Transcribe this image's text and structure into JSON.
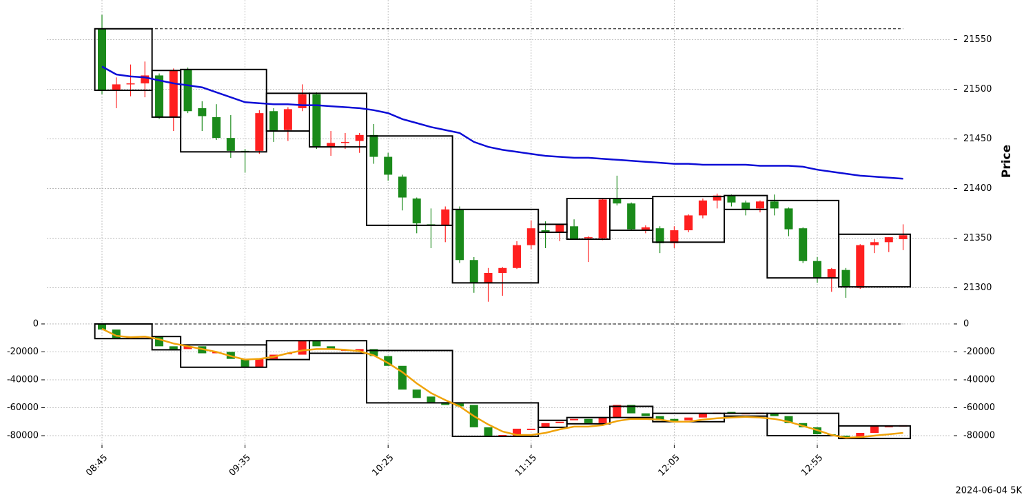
{
  "chart_data": [
    {
      "type": "candlestick",
      "y_label": "Price",
      "y_axis": "right",
      "grid": true,
      "ylim": [
        21274,
        21590
      ],
      "yticks": [
        21300,
        21350,
        21400,
        21450,
        21500,
        21550
      ],
      "up_color": "#ff1f1f",
      "down_color": "#1a8a1a",
      "box_color": "#000000",
      "reference_line": 21561,
      "open": [
        21561,
        21499,
        21505,
        21506,
        21514,
        21472,
        21520,
        21481,
        21472,
        21451,
        21438,
        21438,
        21478,
        21459,
        21481,
        21495,
        21442,
        21446,
        21448,
        21454,
        21432,
        21412,
        21390,
        21364,
        21363,
        21379,
        21328,
        21305,
        21315,
        21320,
        21343,
        21358,
        21356,
        21362,
        21350,
        21350,
        21390,
        21385,
        21358,
        21360,
        21345,
        21358,
        21373,
        21388,
        21393,
        21386,
        21380,
        21387,
        21380,
        21360,
        21327,
        21310,
        21318,
        21300,
        21343,
        21346,
        21349
      ],
      "high": [
        21575,
        21512,
        21525,
        21528,
        21516,
        21521,
        21522,
        21488,
        21485,
        21474,
        21440,
        21479,
        21481,
        21482,
        21505,
        21497,
        21458,
        21456,
        21456,
        21465,
        21436,
        21414,
        21391,
        21380,
        21382,
        21382,
        21331,
        21320,
        21321,
        21347,
        21368,
        21367,
        21364,
        21369,
        21352,
        21390,
        21413,
        21386,
        21363,
        21362,
        21362,
        21374,
        21390,
        21395,
        21394,
        21388,
        21388,
        21394,
        21381,
        21361,
        21331,
        21320,
        21320,
        21344,
        21349,
        21351,
        21364
      ],
      "low": [
        21495,
        21481,
        21493,
        21492,
        21470,
        21458,
        21476,
        21458,
        21449,
        21431,
        21416,
        21435,
        21447,
        21448,
        21478,
        21440,
        21433,
        21440,
        21436,
        21425,
        21408,
        21378,
        21355,
        21340,
        21346,
        21325,
        21295,
        21286,
        21292,
        21319,
        21339,
        21340,
        21347,
        21349,
        21326,
        21348,
        21383,
        21358,
        21355,
        21335,
        21340,
        21356,
        21370,
        21380,
        21382,
        21373,
        21376,
        21373,
        21352,
        21325,
        21305,
        21296,
        21290,
        21299,
        21335,
        21336,
        21338
      ],
      "close": [
        21499,
        21505,
        21506,
        21514,
        21472,
        21519,
        21478,
        21473,
        21451,
        21438,
        21437,
        21476,
        21458,
        21480,
        21495,
        21442,
        21446,
        21447,
        21454,
        21432,
        21414,
        21391,
        21365,
        21363,
        21379,
        21328,
        21305,
        21315,
        21320,
        21343,
        21360,
        21356,
        21364,
        21349,
        21351,
        21389,
        21385,
        21359,
        21361,
        21345,
        21358,
        21373,
        21388,
        21393,
        21386,
        21379,
        21387,
        21380,
        21359,
        21327,
        21310,
        21319,
        21301,
        21343,
        21346,
        21351,
        21353
      ],
      "boxes": [
        {
          "first": 0,
          "last": 3,
          "high": 21561,
          "low": 21499
        },
        {
          "first": 4,
          "last": 5,
          "high": 21519,
          "low": 21472
        },
        {
          "first": 6,
          "last": 11,
          "high": 21520,
          "low": 21437
        },
        {
          "first": 12,
          "last": 14,
          "high": 21496,
          "low": 21458
        },
        {
          "first": 15,
          "last": 18,
          "high": 21496,
          "low": 21442
        },
        {
          "first": 19,
          "last": 24,
          "high": 21453,
          "low": 21363
        },
        {
          "first": 25,
          "last": 30,
          "high": 21379,
          "low": 21305
        },
        {
          "first": 31,
          "last": 32,
          "high": 21364,
          "low": 21356
        },
        {
          "first": 33,
          "last": 35,
          "high": 21390,
          "low": 21349
        },
        {
          "first": 36,
          "last": 38,
          "high": 21390,
          "low": 21358
        },
        {
          "first": 39,
          "last": 43,
          "high": 21392,
          "low": 21346
        },
        {
          "first": 44,
          "last": 46,
          "high": 21393,
          "low": 21379
        },
        {
          "first": 47,
          "last": 51,
          "high": 21388,
          "low": 21310
        },
        {
          "first": 52,
          "last": 56,
          "high": 21354,
          "low": 21301
        }
      ],
      "series": [
        {
          "color": "#0d0dd6",
          "values": [
            21523,
            21515,
            21513,
            21512,
            21509,
            21506,
            21504,
            21502,
            21497,
            21492,
            21487,
            21486,
            21485,
            21485,
            21484,
            21484,
            21483,
            21482,
            21481,
            21479,
            21476,
            21470,
            21466,
            21462,
            21459,
            21456,
            21447,
            21442,
            21439,
            21437,
            21435,
            21433,
            21432,
            21431,
            21431,
            21430,
            21429,
            21428,
            21427,
            21426,
            21425,
            21425,
            21424,
            21424,
            21424,
            21424,
            21423,
            21423,
            21423,
            21422,
            21419,
            21417,
            21415,
            21413,
            21412,
            21411,
            21410
          ]
        }
      ]
    },
    {
      "type": "candlestick",
      "y_axis": "both",
      "grid": true,
      "ylim": [
        -86400,
        5900
      ],
      "yticks": [
        0,
        -20000,
        -40000,
        -60000,
        -80000
      ],
      "up_color": "#ff1f1f",
      "down_color": "#1a8a1a",
      "box_color": "#000000",
      "reference_line": 0,
      "categories": [
        "08:45",
        null,
        null,
        null,
        null,
        null,
        null,
        null,
        null,
        null,
        "09:35",
        null,
        null,
        null,
        null,
        null,
        null,
        null,
        null,
        null,
        "10:25",
        null,
        null,
        null,
        null,
        null,
        null,
        null,
        null,
        null,
        "11:15",
        null,
        null,
        null,
        null,
        null,
        null,
        null,
        null,
        null,
        "12:05",
        null,
        null,
        null,
        null,
        null,
        null,
        null,
        null,
        null,
        "12:55",
        null,
        null,
        null,
        null,
        null,
        null
      ],
      "open": [
        0,
        -4000,
        -10000,
        -9500,
        -9000,
        -16000,
        -18000,
        -16000,
        -21000,
        -20000,
        -25000,
        -31000,
        -25000,
        -21500,
        -22000,
        -12000,
        -16000,
        -19000,
        -19500,
        -18000,
        -23000,
        -30000,
        -47000,
        -52000,
        -56000,
        -57000,
        -58000,
        -74000,
        -80500,
        -80000,
        -76000,
        -74000,
        -71000,
        -69000,
        -68000,
        -71000,
        -67000,
        -58000,
        -64000,
        -66000,
        -68000,
        -69000,
        -67000,
        -64500,
        -63000,
        -64500,
        -64500,
        -64000,
        -66000,
        -71000,
        -74000,
        -79000,
        -80000,
        -82000,
        -78000,
        -74000,
        -73500
      ],
      "close": [
        -4000,
        -10000,
        -9500,
        -9000,
        -16000,
        -18000,
        -16000,
        -21000,
        -20000,
        -25000,
        -31000,
        -25000,
        -22000,
        -21000,
        -12000,
        -16000,
        -18000,
        -18500,
        -18000,
        -23000,
        -30000,
        -47000,
        -53000,
        -56000,
        -58000,
        -59000,
        -74000,
        -80000,
        -79500,
        -75000,
        -75000,
        -71000,
        -70000,
        -68000,
        -71000,
        -67000,
        -58000,
        -64000,
        -66000,
        -69000,
        -70000,
        -67000,
        -64000,
        -63500,
        -64500,
        -64000,
        -63500,
        -66000,
        -71000,
        -74000,
        -79000,
        -80000,
        -82000,
        -78000,
        -73000,
        -73000,
        -72500
      ],
      "boxes": [
        {
          "first": 0,
          "last": 3,
          "high": 0,
          "low": -10500
        },
        {
          "first": 4,
          "last": 5,
          "high": -9000,
          "low": -18500
        },
        {
          "first": 6,
          "last": 11,
          "high": -15000,
          "low": -31000
        },
        {
          "first": 12,
          "last": 14,
          "high": -12000,
          "low": -25500
        },
        {
          "first": 15,
          "last": 18,
          "high": -12000,
          "low": -21000
        },
        {
          "first": 19,
          "last": 24,
          "high": -19000,
          "low": -56500
        },
        {
          "first": 25,
          "last": 30,
          "high": -56500,
          "low": -80500
        },
        {
          "first": 31,
          "last": 32,
          "high": -69000,
          "low": -74000
        },
        {
          "first": 33,
          "last": 35,
          "high": -67000,
          "low": -71500
        },
        {
          "first": 36,
          "last": 38,
          "high": -59000,
          "low": -67000
        },
        {
          "first": 39,
          "last": 43,
          "high": -64000,
          "low": -70000
        },
        {
          "first": 44,
          "last": 46,
          "high": -64000,
          "low": -66000
        },
        {
          "first": 47,
          "last": 51,
          "high": -64000,
          "low": -80000
        },
        {
          "first": 52,
          "last": 56,
          "high": -73000,
          "low": -82000
        }
      ],
      "series": [
        {
          "color": "#f0a30a",
          "values": [
            -3500,
            -8500,
            -9500,
            -9000,
            -11000,
            -14000,
            -16000,
            -18000,
            -20000,
            -23000,
            -25500,
            -25000,
            -23500,
            -21000,
            -19000,
            -18000,
            -18000,
            -18500,
            -19500,
            -22500,
            -28000,
            -34500,
            -42500,
            -49500,
            -54500,
            -59000,
            -66000,
            -72000,
            -77000,
            -79500,
            -79500,
            -78000,
            -75500,
            -73500,
            -73500,
            -72500,
            -69500,
            -68000,
            -68000,
            -68500,
            -70000,
            -70000,
            -68500,
            -67500,
            -67000,
            -66500,
            -67000,
            -68000,
            -70000,
            -73000,
            -76000,
            -79500,
            -81500,
            -81000,
            -80000,
            -79000,
            -78000
          ]
        }
      ],
      "footnote": "2024-06-04 5K"
    }
  ]
}
